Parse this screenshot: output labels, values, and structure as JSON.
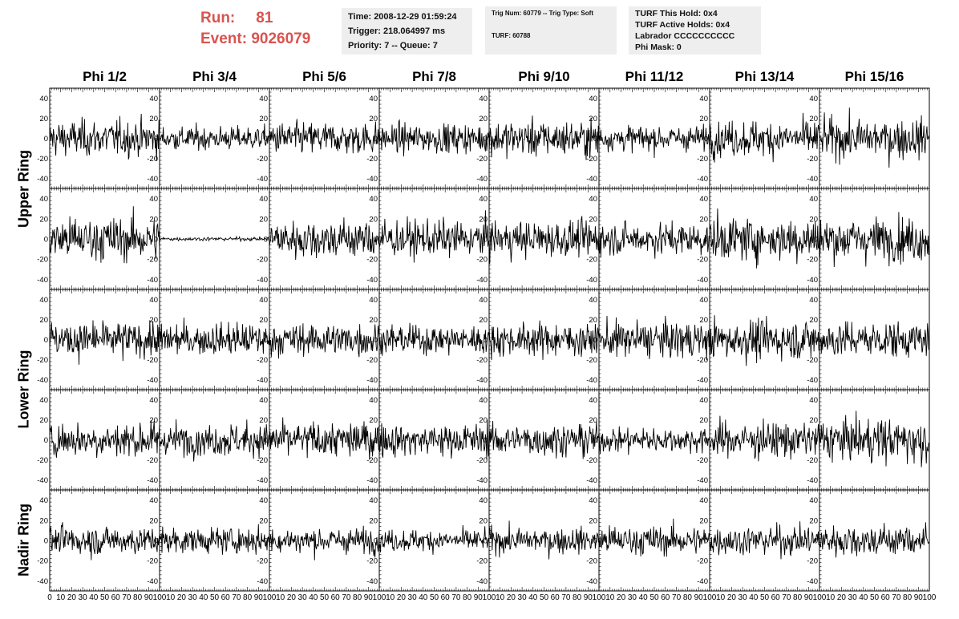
{
  "header": {
    "run_label": "Run:",
    "run_value": "81",
    "event_label": "Event:",
    "event_value": "9026079",
    "time_line": "Time: 2008-12-29 01:59:24",
    "trigger_line": "Trigger: 218.064997 ms",
    "priority_line": "Priority: 7 -- Queue: 7",
    "trig_num_line": "Trig Num: 60779 -- Trig Type: Soft",
    "turf_line": "TURF: 60788",
    "turf_hold_line": "TURF This Hold: 0x4",
    "turf_active_line": "TURF Active Holds: 0x4",
    "labrador_line": "Labrador CCCCCCCCCC",
    "phi_mask_line": "Phi Mask: 0"
  },
  "columns": [
    "Phi 1/2",
    "Phi 3/4",
    "Phi 5/6",
    "Phi 7/8",
    "Phi 9/10",
    "Phi 11/12",
    "Phi 13/14",
    "Phi 15/16"
  ],
  "rows": [
    {
      "label": "Upper Ring",
      "panels": 2
    },
    {
      "label": "Lower Ring",
      "panels": 2
    },
    {
      "label": "Nadir Ring",
      "panels": 1
    }
  ],
  "chart_data": {
    "type": "line",
    "description_units": "waveform voltage vs sample",
    "xlim": [
      0,
      100
    ],
    "ylim": [
      -50,
      50
    ],
    "x_tick_labels": [
      "0",
      "10",
      "20",
      "30",
      "40",
      "50",
      "60",
      "70",
      "80",
      "90",
      "100"
    ],
    "y_tick_labels": [
      "40",
      "20",
      "0",
      "-20",
      "-40"
    ],
    "panel_amplitudes": [
      [
        20,
        13,
        18,
        16,
        20,
        14,
        20,
        22
      ],
      [
        24,
        2,
        22,
        20,
        20,
        18,
        24,
        24
      ],
      [
        20,
        18,
        18,
        16,
        18,
        20,
        22,
        20
      ],
      [
        20,
        18,
        20,
        18,
        18,
        14,
        20,
        24
      ],
      [
        16,
        14,
        14,
        12,
        14,
        16,
        16,
        18
      ]
    ]
  }
}
